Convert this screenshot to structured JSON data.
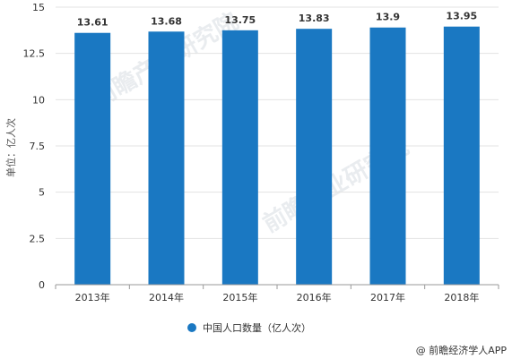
{
  "chart_data": {
    "type": "bar",
    "categories": [
      "2013年",
      "2014年",
      "2015年",
      "2016年",
      "2017年",
      "2018年"
    ],
    "series": [
      {
        "name": "中国人口数量（亿人次）",
        "values": [
          13.61,
          13.68,
          13.75,
          13.83,
          13.9,
          13.95
        ],
        "color": "#1a78c2"
      }
    ],
    "data_labels": [
      "13.61",
      "13.68",
      "13.75",
      "13.83",
      "13.9",
      "13.95"
    ],
    "ylabel": "单位：亿人次",
    "xlabel": "",
    "ylim": [
      0,
      15
    ],
    "yticks": [
      0,
      2.5,
      5,
      7.5,
      10,
      12.5,
      15
    ],
    "ytick_labels": [
      "0",
      "2.5",
      "5",
      "7.5",
      "10",
      "12.5",
      "15"
    ],
    "grid": true,
    "legend_position": "bottom-center"
  },
  "watermark": "前瞻产业研究院",
  "credit": "@ 前瞻经济学人APP",
  "colors": {
    "bar": "#1a78c2",
    "grid": "#e3e3e3",
    "axis": "#999999"
  }
}
